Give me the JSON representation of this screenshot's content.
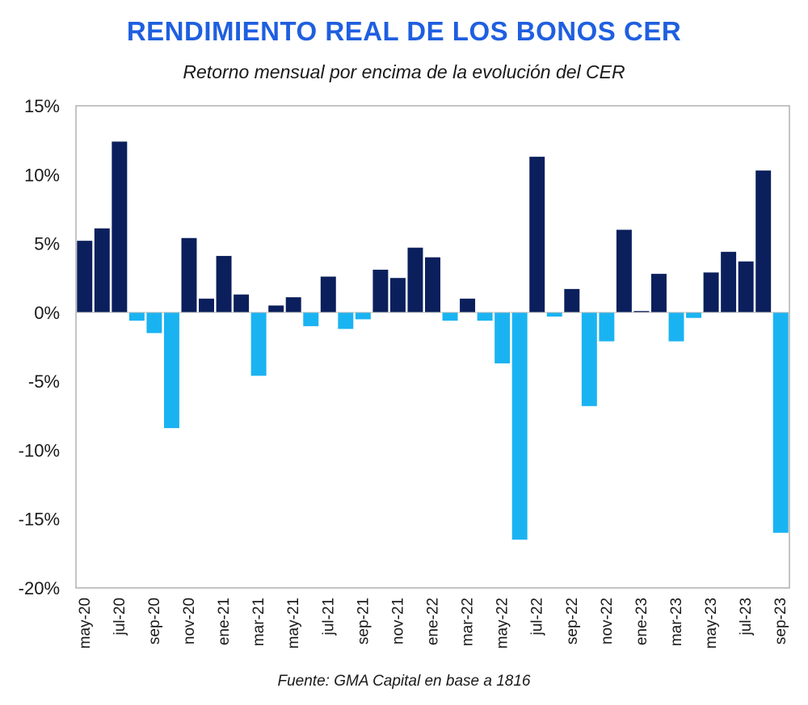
{
  "chart_data": {
    "type": "bar",
    "title": "RENDIMIENTO REAL DE LOS BONOS CER",
    "subtitle": "Retorno mensual por encima de la evolución del CER",
    "source": "Fuente: GMA Capital en base a 1816",
    "xlabel": "",
    "ylabel": "",
    "ylim": [
      -20,
      15
    ],
    "yticks": [
      15,
      10,
      5,
      0,
      -5,
      -10,
      -15,
      -20
    ],
    "ytick_labels": [
      "15%",
      "10%",
      "5%",
      "0%",
      "-5%",
      "-10%",
      "-15%",
      "-20%"
    ],
    "categories": [
      "may-20",
      "jun-20",
      "jul-20",
      "ago-20",
      "sep-20",
      "oct-20",
      "nov-20",
      "dic-20",
      "ene-21",
      "feb-21",
      "mar-21",
      "abr-21",
      "may-21",
      "jun-21",
      "jul-21",
      "ago-21",
      "sep-21",
      "oct-21",
      "nov-21",
      "dic-21",
      "ene-22",
      "feb-22",
      "mar-22",
      "abr-22",
      "may-22",
      "jun-22",
      "jul-22",
      "ago-22",
      "sep-22",
      "oct-22",
      "nov-22",
      "dic-22",
      "ene-23",
      "feb-23",
      "mar-23",
      "abr-23",
      "may-23",
      "jun-23",
      "jul-23",
      "ago-23",
      "sep-23"
    ],
    "xtick_labels": [
      "may-20",
      "jul-20",
      "sep-20",
      "nov-20",
      "ene-21",
      "mar-21",
      "may-21",
      "jul-21",
      "sep-21",
      "nov-21",
      "ene-22",
      "mar-22",
      "may-22",
      "jul-22",
      "sep-22",
      "nov-22",
      "ene-23",
      "mar-23",
      "may-23",
      "jul-23",
      "sep-23"
    ],
    "values": [
      5.2,
      6.1,
      12.4,
      -0.6,
      -1.5,
      -8.4,
      5.4,
      1.0,
      4.1,
      1.3,
      -4.6,
      0.5,
      1.1,
      -1.0,
      2.6,
      -1.2,
      -0.5,
      3.1,
      2.5,
      4.7,
      4.0,
      -0.6,
      1.0,
      -0.6,
      -3.7,
      -16.5,
      11.3,
      -0.3,
      1.7,
      -6.8,
      -2.1,
      6.0,
      0.1,
      2.8,
      -2.1,
      -0.4,
      2.9,
      4.4,
      3.7,
      10.3,
      -16.0
    ],
    "colors": {
      "positive": "#0b1f5c",
      "negative": "#1ab3f2",
      "title": "#1f5fe0",
      "axis": "#b0b0b0"
    },
    "grid": false,
    "legend": "none"
  }
}
